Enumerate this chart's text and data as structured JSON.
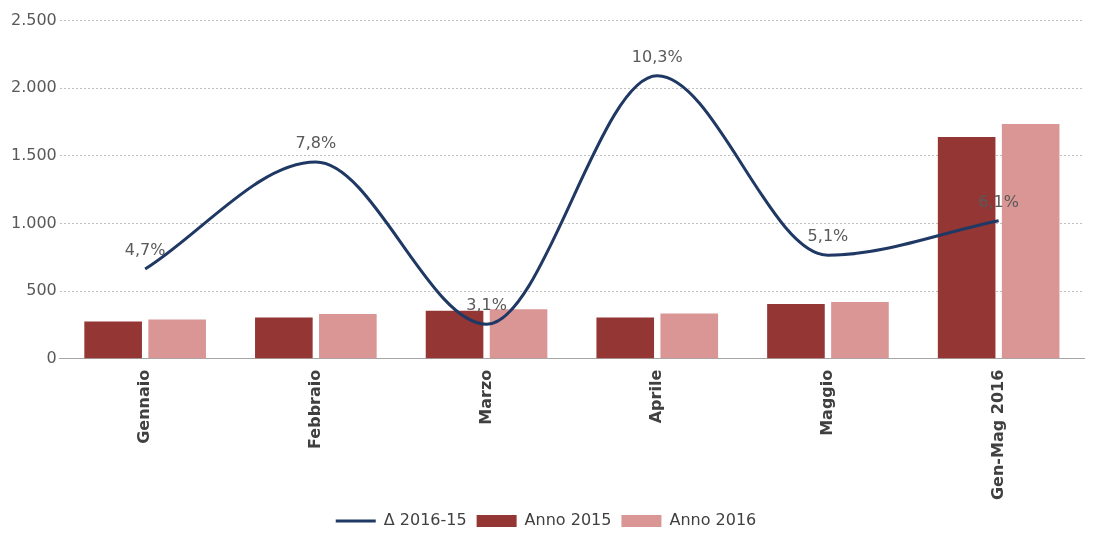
{
  "chart_data": {
    "type": "bar",
    "categories": [
      "Gennaio",
      "Febbraio",
      "Marzo",
      "Aprile",
      "Maggio",
      "Gen-Mag 2016"
    ],
    "series": [
      {
        "name": "Anno 2015",
        "color": "#943634",
        "values": [
          275,
          305,
          355,
          305,
          405,
          1640
        ]
      },
      {
        "name": "Anno 2016",
        "color": "#d99694",
        "values": [
          290,
          330,
          365,
          335,
          420,
          1735
        ]
      },
      {
        "name": "Δ 2016-15",
        "type": "line",
        "axis": "y2",
        "color": "#1f3864",
        "values": [
          4.7,
          7.8,
          3.1,
          10.3,
          5.1,
          6.1
        ],
        "value_labels": [
          "4,7%",
          "7,8%",
          "3,1%",
          "10,3%",
          "5,1%",
          "6,1%"
        ]
      }
    ],
    "ylim": [
      0,
      2500
    ],
    "yticks": [
      {
        "value": 0,
        "label": "0"
      },
      {
        "value": 500,
        "label": "500"
      },
      {
        "value": 1000,
        "label": "1.000"
      },
      {
        "value": 1500,
        "label": "1.500"
      },
      {
        "value": 2000,
        "label": "2.000"
      },
      {
        "value": 2500,
        "label": "2.500"
      }
    ],
    "y2lim": [
      2.1,
      11.9
    ],
    "tick_labels": "xy",
    "grid": "y",
    "legend": "bottom",
    "marker": "none"
  }
}
